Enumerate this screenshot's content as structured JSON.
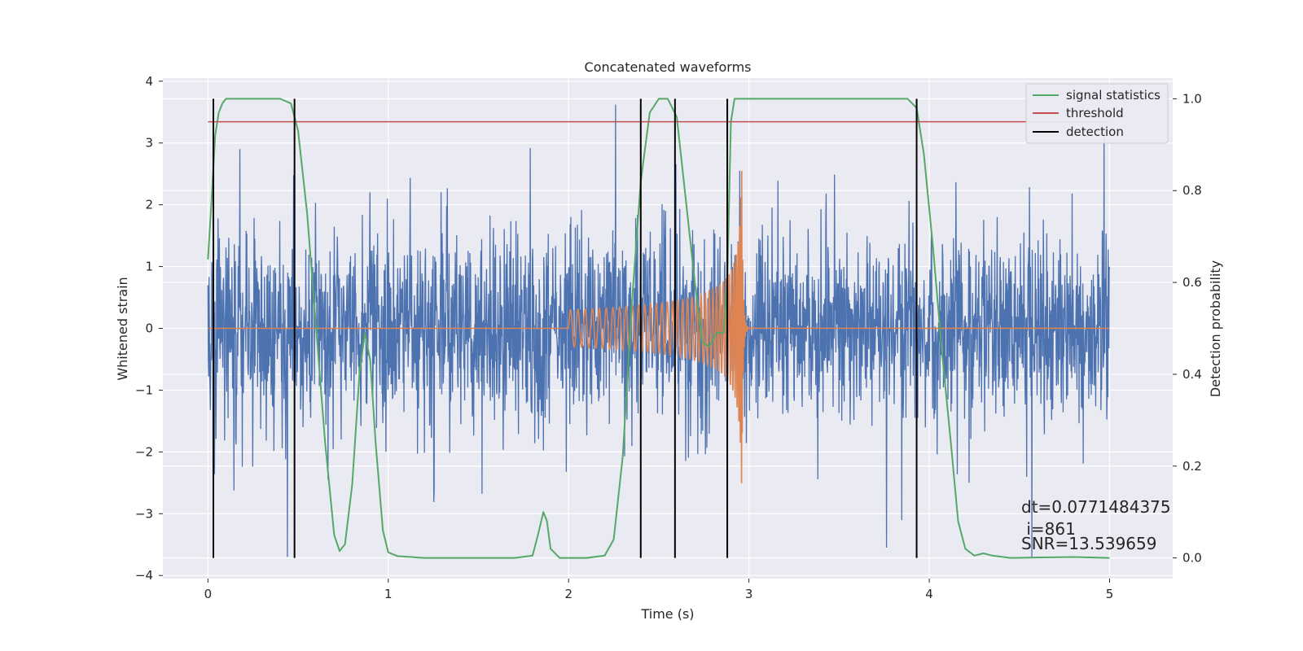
{
  "chart_data": {
    "type": "line",
    "title": "Concatenated waveforms",
    "xlabel": "Time (s)",
    "ylabel": "Whitened strain",
    "y2label": "Detection probability",
    "xlim": [
      -0.25,
      5.35
    ],
    "ylim": [
      -4.05,
      4.05
    ],
    "y2lim": [
      -0.045,
      1.045
    ],
    "x_ticks": [
      0,
      1,
      2,
      3,
      4,
      5
    ],
    "y_ticks": [
      -4,
      -3,
      -2,
      -1,
      0,
      1,
      2,
      3,
      4
    ],
    "y2_ticks": [
      0.0,
      0.2,
      0.4,
      0.6,
      0.8,
      1.0
    ],
    "x_tick_labels": [
      "0",
      "1",
      "2",
      "3",
      "4",
      "5"
    ],
    "y_tick_labels": [
      "−4",
      "−3",
      "−2",
      "−1",
      "0",
      "1",
      "2",
      "3",
      "4"
    ],
    "y2_tick_labels": [
      "0.0",
      "0.2",
      "0.4",
      "0.6",
      "0.8",
      "1.0"
    ],
    "grid": true,
    "legend_position": "top-right",
    "colors": {
      "strain": "#4c72b0",
      "injection": "#dd8452",
      "statistic": "#55a868",
      "threshold": "#c44e52",
      "detection": "#000000",
      "background": "#eaeaf2",
      "grid": "#ffffff"
    },
    "series": [
      {
        "name": "",
        "axis": "left",
        "description_kind": "noise",
        "t_range": [
          0,
          5
        ],
        "noise_sigma": 0.75,
        "peak_examples": [
          [
            0.44,
            -3.7
          ],
          [
            2.26,
            3.62
          ],
          [
            2.95,
            2.55
          ],
          [
            4.57,
            -3.72
          ],
          [
            4.97,
            3.2
          ]
        ]
      },
      {
        "name": "",
        "axis": "left",
        "description_kind": "chirp",
        "t_range": [
          2.0,
          3.0
        ],
        "start_amplitude": 0.3,
        "peak_amplitude": 2.55,
        "peak_time": 2.96
      },
      {
        "name": "signal statistics",
        "axis": "right",
        "points": [
          [
            0.0,
            0.65
          ],
          [
            0.02,
            0.78
          ],
          [
            0.04,
            0.92
          ],
          [
            0.06,
            0.97
          ],
          [
            0.08,
            0.99
          ],
          [
            0.1,
            1.0
          ],
          [
            0.2,
            1.0
          ],
          [
            0.3,
            1.0
          ],
          [
            0.4,
            1.0
          ],
          [
            0.46,
            0.99
          ],
          [
            0.5,
            0.93
          ],
          [
            0.55,
            0.75
          ],
          [
            0.6,
            0.5
          ],
          [
            0.65,
            0.25
          ],
          [
            0.7,
            0.05
          ],
          [
            0.73,
            0.015
          ],
          [
            0.76,
            0.03
          ],
          [
            0.8,
            0.16
          ],
          [
            0.84,
            0.4
          ],
          [
            0.87,
            0.49
          ],
          [
            0.9,
            0.43
          ],
          [
            0.93,
            0.25
          ],
          [
            0.97,
            0.06
          ],
          [
            1.0,
            0.012
          ],
          [
            1.05,
            0.004
          ],
          [
            1.2,
            0.0
          ],
          [
            1.5,
            0.0
          ],
          [
            1.7,
            0.0
          ],
          [
            1.8,
            0.005
          ],
          [
            1.83,
            0.05
          ],
          [
            1.86,
            0.1
          ],
          [
            1.88,
            0.08
          ],
          [
            1.9,
            0.02
          ],
          [
            1.95,
            0.0
          ],
          [
            2.1,
            0.0
          ],
          [
            2.2,
            0.005
          ],
          [
            2.25,
            0.04
          ],
          [
            2.3,
            0.22
          ],
          [
            2.35,
            0.55
          ],
          [
            2.4,
            0.82
          ],
          [
            2.45,
            0.97
          ],
          [
            2.5,
            1.0
          ],
          [
            2.55,
            1.0
          ],
          [
            2.6,
            0.96
          ],
          [
            2.65,
            0.78
          ],
          [
            2.7,
            0.6
          ],
          [
            2.74,
            0.47
          ],
          [
            2.78,
            0.46
          ],
          [
            2.82,
            0.49
          ],
          [
            2.86,
            0.49
          ],
          [
            2.88,
            0.6
          ],
          [
            2.9,
            0.95
          ],
          [
            2.92,
            1.0
          ],
          [
            3.0,
            1.0
          ],
          [
            3.5,
            1.0
          ],
          [
            3.88,
            1.0
          ],
          [
            3.93,
            0.98
          ],
          [
            3.97,
            0.88
          ],
          [
            4.02,
            0.68
          ],
          [
            4.07,
            0.45
          ],
          [
            4.12,
            0.25
          ],
          [
            4.16,
            0.08
          ],
          [
            4.2,
            0.02
          ],
          [
            4.25,
            0.005
          ],
          [
            4.3,
            0.01
          ],
          [
            4.35,
            0.005
          ],
          [
            4.45,
            0.0
          ],
          [
            4.8,
            0.002
          ],
          [
            5.0,
            0.0
          ]
        ]
      },
      {
        "name": "threshold",
        "axis": "right",
        "points": [
          [
            0.0,
            0.95
          ],
          [
            5.0,
            0.95
          ]
        ]
      },
      {
        "name": "detection",
        "axis": "right",
        "vlines": [
          0.03,
          0.48,
          2.4,
          2.59,
          2.88,
          3.93
        ],
        "range": [
          0.0,
          1.0
        ]
      }
    ],
    "annotations": {
      "dt": "dt=0.0771484375",
      "i": " i=861",
      "snr": "SNR=13.539659"
    }
  }
}
